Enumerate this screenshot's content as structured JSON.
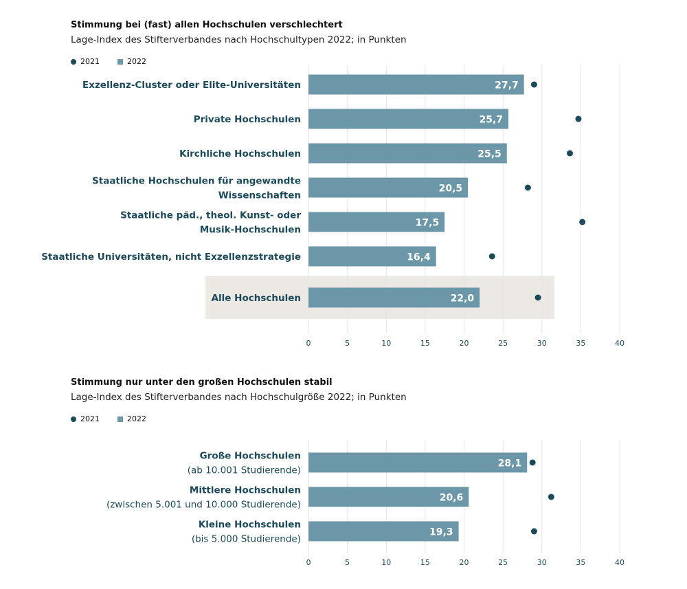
{
  "legend": {
    "series_2021": "2021",
    "series_2022": "2022"
  },
  "colors": {
    "bar": "#6b97a8",
    "dot": "#1c4a5a",
    "label": "#1c4a5a",
    "highlight": "#ece9e4",
    "grid": "#e6e6e6"
  },
  "chart_data": [
    {
      "type": "bar",
      "title": "Stimmung bei (fast) allen Hochschulen verschlechtert",
      "subtitle": "Lage-Index des Stifterverbandes nach Hochschultypen 2022; in Punkten",
      "categories": [
        [
          "Exzellenz-Cluster oder Elite-Universitäten"
        ],
        [
          "Private Hochschulen"
        ],
        [
          "Kirchliche Hochschulen"
        ],
        [
          "Staatliche Hochschulen für angewandte",
          "Wissenschaften"
        ],
        [
          "Staatliche päd., theol. Kunst- oder",
          "Musik-Hochschulen"
        ],
        [
          "Staatliche Universitäten, nicht Exzellenzstrategie"
        ],
        [
          "Alle Hochschulen"
        ]
      ],
      "highlight_last": true,
      "series": [
        {
          "name": "2022",
          "kind": "bar",
          "values": [
            27.7,
            25.7,
            25.5,
            20.5,
            17.5,
            16.4,
            22.0
          ],
          "labels": [
            "27,7",
            "25,7",
            "25,5",
            "20,5",
            "17,5",
            "16,4",
            "22,0"
          ]
        },
        {
          "name": "2021",
          "kind": "dot",
          "values": [
            29.0,
            34.7,
            33.6,
            28.2,
            35.2,
            23.6,
            29.5
          ]
        }
      ],
      "xlim": [
        0,
        40
      ],
      "xticks": [
        0,
        5,
        10,
        15,
        20,
        25,
        30,
        35,
        40
      ],
      "grid": true
    },
    {
      "type": "bar",
      "title": "Stimmung nur unter den großen Hochschulen stabil",
      "subtitle": "Lage-Index des Stifterverbandes nach Hochschulgröße 2022; in Punkten",
      "categories": [
        [
          "Große Hochschulen",
          "(ab 10.001 Studierende)"
        ],
        [
          "Mittlere Hochschulen",
          "(zwischen 5.001 und 10.000 Studierende)"
        ],
        [
          "Kleine Hochschulen",
          "(bis 5.000 Studierende)"
        ]
      ],
      "highlight_last": false,
      "series": [
        {
          "name": "2022",
          "kind": "bar",
          "values": [
            28.1,
            20.6,
            19.3
          ],
          "labels": [
            "28,1",
            "20,6",
            "19,3"
          ]
        },
        {
          "name": "2021",
          "kind": "dot",
          "values": [
            28.8,
            31.2,
            29.0
          ]
        }
      ],
      "xlim": [
        0,
        40
      ],
      "xticks": [
        0,
        5,
        10,
        15,
        20,
        25,
        30,
        35,
        40
      ],
      "grid": true
    }
  ]
}
